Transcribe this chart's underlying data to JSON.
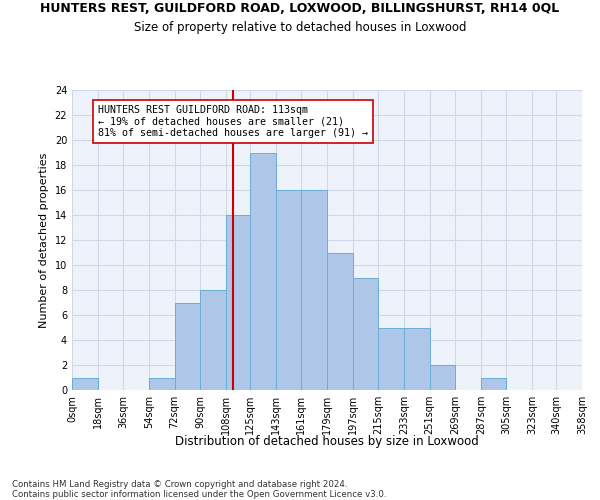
{
  "title": "HUNTERS REST, GUILDFORD ROAD, LOXWOOD, BILLINGSHURST, RH14 0QL",
  "subtitle": "Size of property relative to detached houses in Loxwood",
  "xlabel": "Distribution of detached houses by size in Loxwood",
  "ylabel": "Number of detached properties",
  "bin_edges": [
    0,
    18,
    36,
    54,
    72,
    90,
    108,
    125,
    143,
    161,
    179,
    197,
    215,
    233,
    251,
    269,
    287,
    305,
    323,
    340,
    358
  ],
  "bin_labels": [
    "0sqm",
    "18sqm",
    "36sqm",
    "54sqm",
    "72sqm",
    "90sqm",
    "108sqm",
    "125sqm",
    "143sqm",
    "161sqm",
    "179sqm",
    "197sqm",
    "215sqm",
    "233sqm",
    "251sqm",
    "269sqm",
    "287sqm",
    "305sqm",
    "323sqm",
    "340sqm",
    "358sqm"
  ],
  "counts": [
    1,
    0,
    0,
    1,
    7,
    8,
    14,
    19,
    16,
    16,
    11,
    9,
    5,
    5,
    2,
    0,
    1,
    0,
    0,
    0
  ],
  "bar_facecolor": "#aec6e8",
  "bar_edgecolor": "#6aaed6",
  "grid_color": "#d0d8e8",
  "background_color": "#eef2fa",
  "property_value": 113,
  "vline_color": "#cc0000",
  "annotation_text": "HUNTERS REST GUILDFORD ROAD: 113sqm\n← 19% of detached houses are smaller (21)\n81% of semi-detached houses are larger (91) →",
  "annotation_box_edgecolor": "#cc0000",
  "annotation_box_facecolor": "#ffffff",
  "ylim": [
    0,
    24
  ],
  "yticks": [
    0,
    2,
    4,
    6,
    8,
    10,
    12,
    14,
    16,
    18,
    20,
    22,
    24
  ],
  "footer": "Contains HM Land Registry data © Crown copyright and database right 2024.\nContains public sector information licensed under the Open Government Licence v3.0.",
  "title_fontsize": 9.0,
  "subtitle_fontsize": 8.5,
  "xlabel_fontsize": 8.5,
  "ylabel_fontsize": 8.0,
  "tick_fontsize": 7.0,
  "annotation_fontsize": 7.2,
  "footer_fontsize": 6.2
}
